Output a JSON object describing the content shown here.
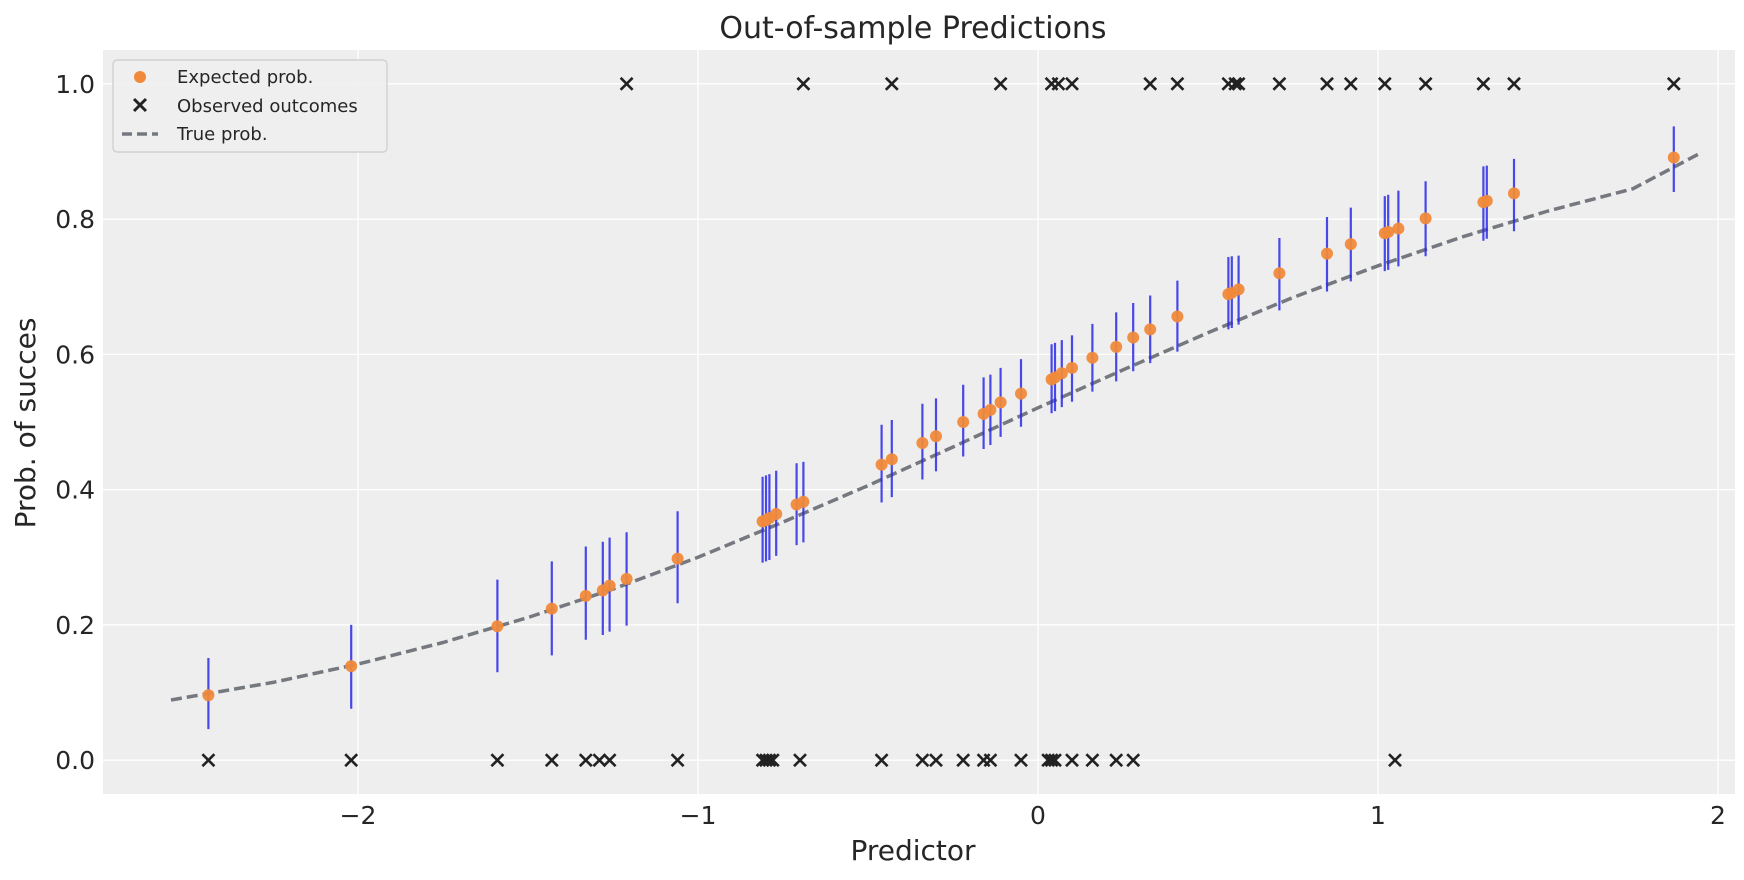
{
  "chart_data": {
    "type": "scatter",
    "title": "Out-of-sample Predictions",
    "xlabel": "Predictor",
    "ylabel": "Prob. of succes",
    "xlim": [
      -2.75,
      2.05
    ],
    "ylim": [
      -0.05,
      1.05
    ],
    "xticks": [
      -2,
      -1,
      0,
      1,
      2
    ],
    "xtick_labels": [
      "−2",
      "−1",
      "0",
      "1",
      "2"
    ],
    "yticks": [
      0.0,
      0.2,
      0.4,
      0.6,
      0.8,
      1.0
    ],
    "ytick_labels": [
      "0.0",
      "0.2",
      "0.4",
      "0.6",
      "0.8",
      "1.0"
    ],
    "grid": true,
    "legend_position": "top-left",
    "colors": {
      "background": "#eeeeee",
      "grid": "#ffffff",
      "expected": "#f08a3a",
      "observed": "#222222",
      "true_line": "#75787f",
      "interval": "#2a2ae6"
    },
    "series": [
      {
        "name": "Expected prob.",
        "kind": "points",
        "x": [
          -2.44,
          -2.02,
          -1.59,
          -1.43,
          -1.33,
          -1.28,
          -1.26,
          -1.21,
          -1.06,
          -0.81,
          -0.8,
          -0.79,
          -0.77,
          -0.71,
          -0.69,
          -0.46,
          -0.43,
          -0.34,
          -0.3,
          -0.22,
          -0.16,
          -0.14,
          -0.11,
          -0.05,
          0.04,
          0.05,
          0.07,
          0.1,
          0.16,
          0.23,
          0.28,
          0.33,
          0.41,
          0.56,
          0.57,
          0.59,
          0.71,
          0.85,
          0.92,
          1.02,
          1.03,
          1.06,
          1.14,
          1.31,
          1.32,
          1.4,
          1.87
        ],
        "y": [
          0.096,
          0.139,
          0.198,
          0.224,
          0.243,
          0.251,
          0.258,
          0.268,
          0.298,
          0.353,
          0.355,
          0.358,
          0.364,
          0.378,
          0.382,
          0.437,
          0.445,
          0.469,
          0.479,
          0.5,
          0.512,
          0.518,
          0.529,
          0.542,
          0.563,
          0.566,
          0.572,
          0.58,
          0.595,
          0.611,
          0.625,
          0.637,
          0.656,
          0.689,
          0.691,
          0.696,
          0.72,
          0.749,
          0.763,
          0.779,
          0.781,
          0.786,
          0.801,
          0.825,
          0.827,
          0.838,
          0.891
        ],
        "lower": [
          0.046,
          0.076,
          0.13,
          0.155,
          0.178,
          0.185,
          0.19,
          0.199,
          0.232,
          0.292,
          0.294,
          0.296,
          0.302,
          0.318,
          0.322,
          0.381,
          0.389,
          0.415,
          0.427,
          0.449,
          0.46,
          0.466,
          0.478,
          0.493,
          0.513,
          0.516,
          0.522,
          0.53,
          0.545,
          0.56,
          0.575,
          0.587,
          0.604,
          0.637,
          0.639,
          0.644,
          0.665,
          0.693,
          0.708,
          0.723,
          0.725,
          0.73,
          0.745,
          0.768,
          0.771,
          0.782,
          0.84
        ],
        "upper": [
          0.151,
          0.2,
          0.267,
          0.294,
          0.316,
          0.323,
          0.329,
          0.337,
          0.368,
          0.419,
          0.421,
          0.423,
          0.428,
          0.439,
          0.441,
          0.496,
          0.503,
          0.527,
          0.535,
          0.555,
          0.566,
          0.57,
          0.58,
          0.593,
          0.615,
          0.617,
          0.621,
          0.628,
          0.645,
          0.662,
          0.676,
          0.687,
          0.709,
          0.744,
          0.745,
          0.746,
          0.772,
          0.803,
          0.817,
          0.834,
          0.836,
          0.842,
          0.856,
          0.878,
          0.879,
          0.889,
          0.937
        ]
      },
      {
        "name": "Observed outcomes",
        "kind": "x-markers",
        "x": [
          -1.21,
          -0.69,
          -0.43,
          -0.11,
          0.04,
          0.06,
          0.1,
          0.33,
          0.41,
          0.56,
          0.58,
          0.59,
          0.71,
          0.85,
          0.92,
          1.02,
          1.14,
          1.31,
          1.4,
          1.87,
          -2.44,
          -2.02,
          -1.59,
          -1.43,
          -1.33,
          -1.29,
          -1.26,
          -1.06,
          -0.81,
          -0.8,
          -0.79,
          -0.78,
          -0.7,
          -0.46,
          -0.34,
          -0.3,
          -0.22,
          -0.16,
          -0.14,
          -0.05,
          0.03,
          0.04,
          0.05,
          0.1,
          0.16,
          0.23,
          0.28,
          1.05
        ],
        "y": [
          1,
          1,
          1,
          1,
          1,
          1,
          1,
          1,
          1,
          1,
          1,
          1,
          1,
          1,
          1,
          1,
          1,
          1,
          1,
          1,
          0,
          0,
          0,
          0,
          0,
          0,
          0,
          0,
          0,
          0,
          0,
          0,
          0,
          0,
          0,
          0,
          0,
          0,
          0,
          0,
          0,
          0,
          0,
          0,
          0,
          0,
          0,
          0
        ]
      },
      {
        "name": "True prob.",
        "kind": "dashed-line",
        "x": [
          -2.55,
          -2.25,
          -2.0,
          -1.75,
          -1.5,
          -1.25,
          -1.0,
          -0.75,
          -0.5,
          -0.25,
          0.0,
          0.25,
          0.5,
          0.75,
          1.0,
          1.25,
          1.5,
          1.75,
          1.95
        ],
        "y": [
          0.089,
          0.115,
          0.142,
          0.174,
          0.211,
          0.253,
          0.3,
          0.352,
          0.406,
          0.463,
          0.521,
          0.577,
          0.632,
          0.684,
          0.731,
          0.774,
          0.812,
          0.845,
          0.898
        ]
      }
    ]
  }
}
